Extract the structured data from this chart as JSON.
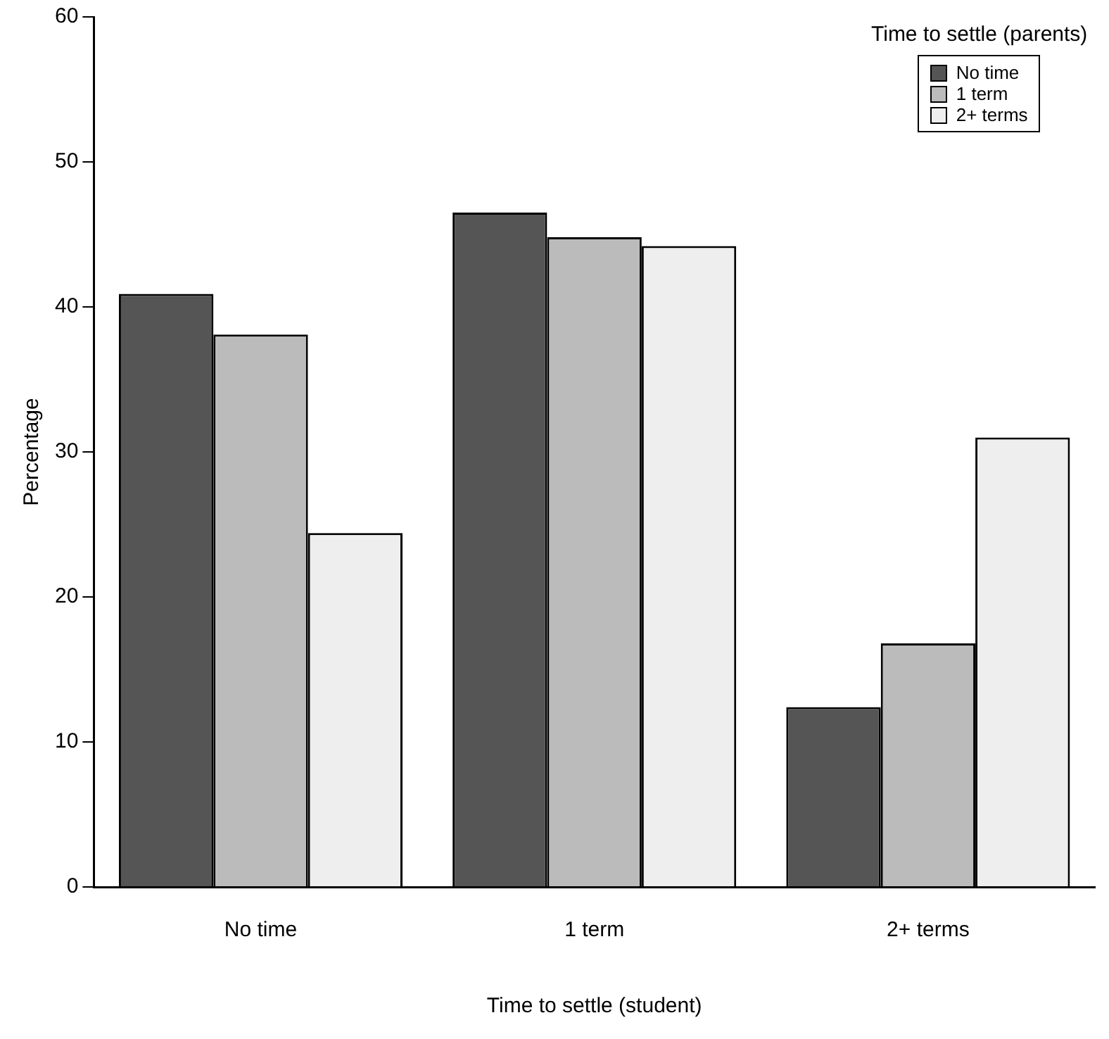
{
  "chart_data": {
    "type": "bar",
    "xlabel": "Time to settle (student)",
    "ylabel": "Percentage",
    "legend_title": "Time to settle (parents)",
    "legend": "top right",
    "grid": false,
    "categories": [
      "No time",
      "1 term",
      "2+ terms"
    ],
    "ylim": [
      0,
      60
    ],
    "yticks": [
      0,
      10,
      20,
      30,
      40,
      50,
      60
    ],
    "series": [
      {
        "name": "No time",
        "color": "#555555",
        "values": [
          40.9,
          46.5,
          12.4
        ]
      },
      {
        "name": "1 term",
        "color": "#bbbbbb",
        "values": [
          38.1,
          44.8,
          16.8
        ]
      },
      {
        "name": "2+ terms",
        "color": "#eeeeee",
        "values": [
          24.4,
          44.2,
          31.0
        ]
      }
    ]
  }
}
